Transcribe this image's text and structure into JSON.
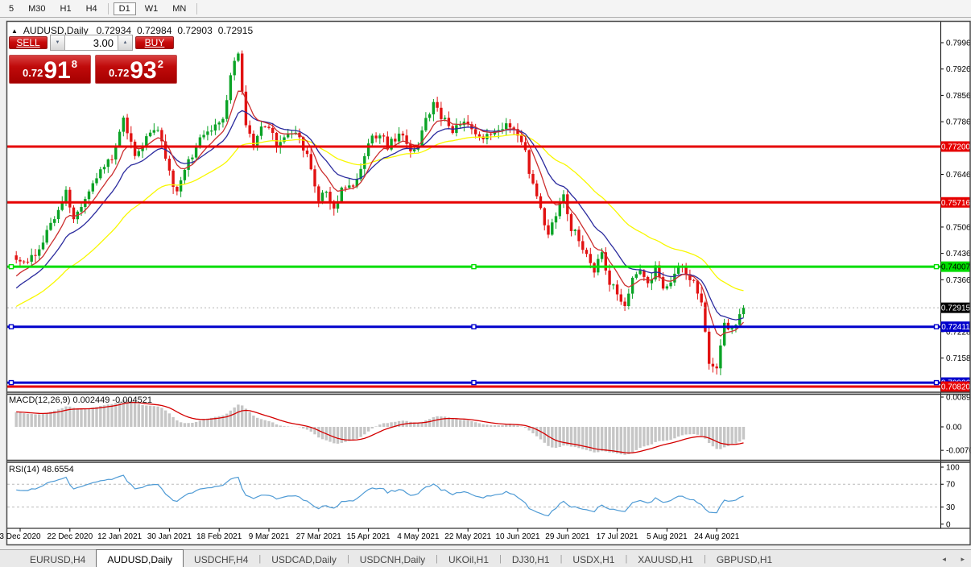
{
  "toolbar": {
    "timeframes": [
      {
        "label": "5",
        "active": false
      },
      {
        "label": "M30",
        "active": false
      },
      {
        "label": "H1",
        "active": false
      },
      {
        "label": "H4",
        "active": false
      },
      {
        "label": "D1",
        "active": true
      },
      {
        "label": "W1",
        "active": false
      },
      {
        "label": "MN",
        "active": false
      }
    ]
  },
  "chart_window": {
    "title": "AUDUSD,Daily",
    "ohlc": {
      "open": "0.72934",
      "high": "0.72984",
      "low": "0.72903",
      "close": "0.72915"
    }
  },
  "trade_panel": {
    "sell_label": "SELL",
    "buy_label": "BUY",
    "volume": "3.00",
    "sell_price": {
      "prefix": "0.72",
      "big": "91",
      "pip": "8"
    },
    "buy_price": {
      "prefix": "0.72",
      "big": "93",
      "pip": "2"
    }
  },
  "chart_data": {
    "type": "candlestick",
    "symbol": "AUDUSD",
    "period": "Daily",
    "last_close": 0.72915,
    "up_color": "#0ba326",
    "down_color": "#e11212",
    "num_candles": 191,
    "anchors": [
      [
        0,
        0.7425
      ],
      [
        3,
        0.7405
      ],
      [
        7,
        0.747
      ],
      [
        11,
        0.755
      ],
      [
        13,
        0.761
      ],
      [
        15,
        0.7525
      ],
      [
        18,
        0.7578
      ],
      [
        21,
        0.764
      ],
      [
        25,
        0.7692
      ],
      [
        27,
        0.7762
      ],
      [
        28,
        0.7795
      ],
      [
        31,
        0.7692
      ],
      [
        34,
        0.7745
      ],
      [
        37,
        0.7768
      ],
      [
        40,
        0.7648
      ],
      [
        42,
        0.7592
      ],
      [
        45,
        0.768
      ],
      [
        48,
        0.7736
      ],
      [
        51,
        0.7762
      ],
      [
        54,
        0.78
      ],
      [
        57,
        0.795
      ],
      [
        58,
        0.7968
      ],
      [
        59,
        0.7872
      ],
      [
        60,
        0.7772
      ],
      [
        62,
        0.7728
      ],
      [
        64,
        0.7772
      ],
      [
        66,
        0.7778
      ],
      [
        68,
        0.7724
      ],
      [
        70,
        0.774
      ],
      [
        73,
        0.7758
      ],
      [
        76,
        0.77
      ],
      [
        79,
        0.7585
      ],
      [
        81,
        0.76
      ],
      [
        83,
        0.7556
      ],
      [
        85,
        0.7604
      ],
      [
        88,
        0.762
      ],
      [
        90,
        0.766
      ],
      [
        92,
        0.7735
      ],
      [
        95,
        0.7758
      ],
      [
        97,
        0.772
      ],
      [
        100,
        0.7752
      ],
      [
        103,
        0.7716
      ],
      [
        105,
        0.7726
      ],
      [
        107,
        0.7788
      ],
      [
        109,
        0.784
      ],
      [
        111,
        0.78
      ],
      [
        114,
        0.7762
      ],
      [
        117,
        0.7788
      ],
      [
        120,
        0.776
      ],
      [
        123,
        0.7744
      ],
      [
        126,
        0.7768
      ],
      [
        129,
        0.7774
      ],
      [
        131,
        0.775
      ],
      [
        133,
        0.77
      ],
      [
        135,
        0.7612
      ],
      [
        137,
        0.756
      ],
      [
        139,
        0.7482
      ],
      [
        141,
        0.7545
      ],
      [
        143,
        0.7588
      ],
      [
        145,
        0.7502
      ],
      [
        147,
        0.7478
      ],
      [
        149,
        0.7432
      ],
      [
        151,
        0.739
      ],
      [
        153,
        0.7438
      ],
      [
        155,
        0.7356
      ],
      [
        157,
        0.733
      ],
      [
        159,
        0.7292
      ],
      [
        161,
        0.7364
      ],
      [
        163,
        0.7395
      ],
      [
        165,
        0.735
      ],
      [
        167,
        0.7394
      ],
      [
        169,
        0.735
      ],
      [
        171,
        0.7356
      ],
      [
        173,
        0.74
      ],
      [
        175,
        0.738
      ],
      [
        177,
        0.7356
      ],
      [
        179,
        0.73
      ],
      [
        181,
        0.7138
      ],
      [
        183,
        0.7126
      ],
      [
        185,
        0.7252
      ],
      [
        187,
        0.723
      ],
      [
        189,
        0.7278
      ],
      [
        190,
        0.72915
      ]
    ],
    "ma": [
      {
        "period": 40,
        "color": "#f8f800",
        "seed_offset": -0.013,
        "name": "ma-slow"
      },
      {
        "period": 16,
        "color": "#2b2b9e",
        "seed_offset": -0.0085,
        "name": "ma-mid"
      },
      {
        "period": 8,
        "color": "#cc2f2f",
        "seed_offset": -0.0055,
        "name": "ma-fast"
      }
    ],
    "price_ticks": [
      "0.79960",
      "0.79260",
      "0.78560",
      "0.77860",
      "0.76460",
      "0.75060",
      "0.74360",
      "0.73660",
      "0.72280",
      "0.71580"
    ],
    "hlines": [
      {
        "label": "0.77200",
        "color": "#e60000",
        "text": "#ffffff",
        "width": 3,
        "handles": false
      },
      {
        "label": "0.75716",
        "color": "#e60000",
        "text": "#ffffff",
        "width": 3,
        "handles": false
      },
      {
        "label": "0.74007",
        "color": "#00dd00",
        "text": "#000000",
        "width": 3,
        "handles": true
      },
      {
        "label": "0.72411",
        "color": "#0000cc",
        "text": "#ffffff",
        "width": 3,
        "handles": true
      },
      {
        "label": "0.70926",
        "color": "#0000cc",
        "text": "#ffffff",
        "width": 3,
        "handles": true
      },
      {
        "label": "0.70820",
        "color": "#e60000",
        "text": "#ffffff",
        "width": 3,
        "handles": false
      }
    ],
    "bid_label": "0.72915",
    "macd": {
      "label": "MACD(12,26,9) 0.002449 -0.004521",
      "bar_color": "#c6c6c6",
      "line_color": "#d40000",
      "ticks": [
        "0.00890",
        "0.00",
        "-0.00701"
      ]
    },
    "rsi": {
      "label": "RSI(14) 48.6554",
      "line_color": "#4f9bd5",
      "ticks": [
        "100",
        "70",
        "30",
        "0"
      ],
      "levels": [
        70,
        30
      ]
    },
    "dates": [
      "3 Dec 2020",
      "22 Dec 2020",
      "12 Jan 2021",
      "30 Jan 2021",
      "18 Feb 2021",
      "9 Mar 2021",
      "27 Mar 2021",
      "15 Apr 2021",
      "4 May 2021",
      "22 May 2021",
      "10 Jun 2021",
      "29 Jun 2021",
      "17 Jul 2021",
      "5 Aug 2021",
      "24 Aug 2021"
    ]
  },
  "tab_bar": {
    "tabs": [
      {
        "label": "EURUSD,H4",
        "active": false
      },
      {
        "label": "AUDUSD,Daily",
        "active": true
      },
      {
        "label": "USDCHF,H4",
        "active": false
      },
      {
        "label": "USDCAD,Daily",
        "active": false
      },
      {
        "label": "USDCNH,Daily",
        "active": false
      },
      {
        "label": "UKOil,H1",
        "active": false
      },
      {
        "label": "DJ30,H1",
        "active": false
      },
      {
        "label": "USDX,H1",
        "active": false
      },
      {
        "label": "XAUUSD,H1",
        "active": false
      },
      {
        "label": "GBPUSD,H1",
        "active": false
      }
    ],
    "scroll_left": "◂",
    "scroll_right": "▸"
  }
}
